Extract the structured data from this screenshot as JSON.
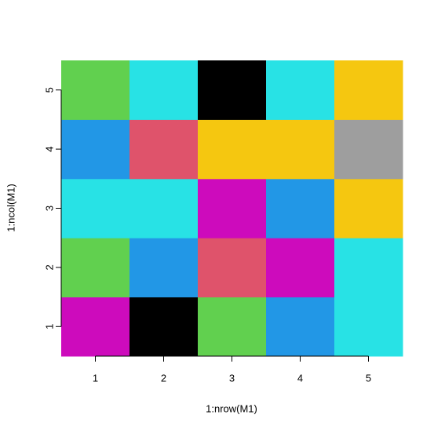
{
  "chart_data": {
    "type": "heatmap",
    "x_label": "1:nrow(M1)",
    "y_label": "1:ncol(M1)",
    "x": [
      1,
      2,
      3,
      4,
      5
    ],
    "y": [
      1,
      2,
      3,
      4,
      5
    ],
    "z": [
      [
        6,
        1,
        3,
        4,
        5
      ],
      [
        3,
        4,
        2,
        6,
        5
      ],
      [
        5,
        5,
        6,
        4,
        7
      ],
      [
        4,
        2,
        7,
        7,
        8
      ],
      [
        3,
        5,
        1,
        5,
        7
      ]
    ],
    "palette": [
      "#000000",
      "#DF536B",
      "#61D04F",
      "#2297E6",
      "#28E2E5",
      "#CD0BBC",
      "#F5C710",
      "#9E9E9E"
    ],
    "xlim": [
      0.5,
      5.5
    ],
    "ylim": [
      0.5,
      5.5
    ],
    "xticks": [
      1,
      2,
      3,
      4,
      5
    ],
    "yticks": [
      1,
      2,
      3,
      4,
      5
    ]
  }
}
